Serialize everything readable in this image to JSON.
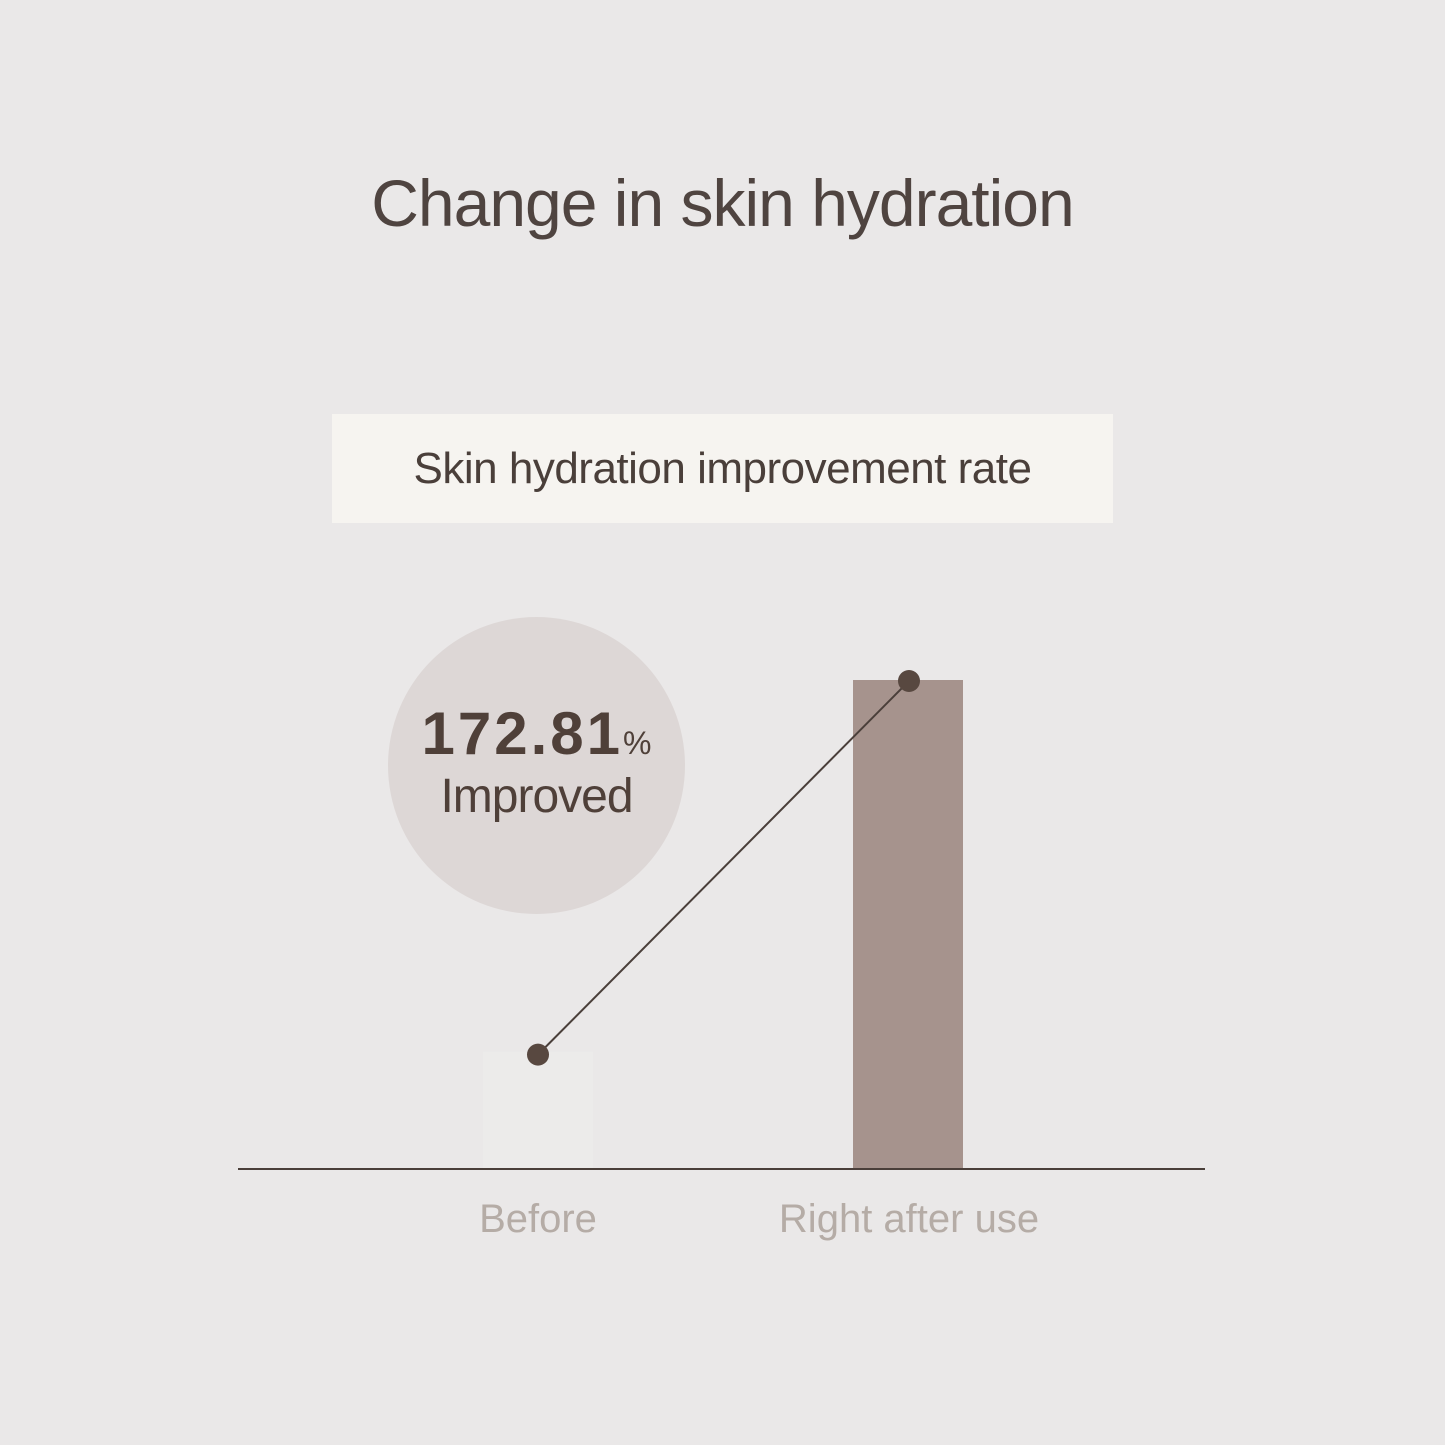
{
  "title": "Change in skin hydration",
  "chart_data": {
    "type": "bar",
    "subtitle": "Skin hydration improvement rate",
    "categories": [
      "Before",
      "Right after use"
    ],
    "values": [
      24,
      100
    ],
    "ylim": [
      0,
      100
    ],
    "grid": false,
    "line_overlay": true,
    "annotation": {
      "value": "172.81",
      "unit": "%",
      "label": "Improved"
    },
    "colors": {
      "before": "#ecebea",
      "after": "#a6938d",
      "line": "#4a3f3a",
      "point": "#584840",
      "axis": "#4a3f3a"
    }
  }
}
